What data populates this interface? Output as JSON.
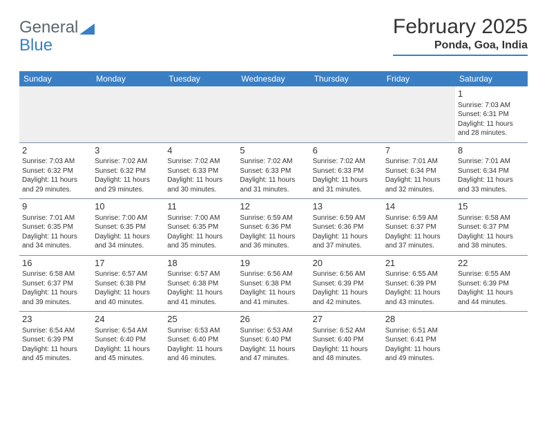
{
  "logo": {
    "word1": "General",
    "word2": "Blue"
  },
  "header": {
    "month_title": "February 2025",
    "location": "Ponda, Goa, India"
  },
  "style": {
    "accent_color": "#3a7fc4",
    "text_color": "#333333",
    "header_text_color": "#ffffff",
    "row_border_color": "#7a8aa0",
    "blank_row_bg": "#efefef",
    "page_bg": "#ffffff",
    "month_title_fontsize": 30,
    "location_fontsize": 16,
    "dayheader_fontsize": 12,
    "body_fontsize": 10,
    "daynum_fontsize": 13
  },
  "calendar": {
    "day_headers": [
      "Sunday",
      "Monday",
      "Tuesday",
      "Wednesday",
      "Thursday",
      "Friday",
      "Saturday"
    ],
    "weeks": [
      [
        null,
        null,
        null,
        null,
        null,
        null,
        {
          "n": "1",
          "sr": "Sunrise: 7:03 AM",
          "ss": "Sunset: 6:31 PM",
          "d1": "Daylight: 11 hours",
          "d2": "and 28 minutes."
        }
      ],
      [
        {
          "n": "2",
          "sr": "Sunrise: 7:03 AM",
          "ss": "Sunset: 6:32 PM",
          "d1": "Daylight: 11 hours",
          "d2": "and 29 minutes."
        },
        {
          "n": "3",
          "sr": "Sunrise: 7:02 AM",
          "ss": "Sunset: 6:32 PM",
          "d1": "Daylight: 11 hours",
          "d2": "and 29 minutes."
        },
        {
          "n": "4",
          "sr": "Sunrise: 7:02 AM",
          "ss": "Sunset: 6:33 PM",
          "d1": "Daylight: 11 hours",
          "d2": "and 30 minutes."
        },
        {
          "n": "5",
          "sr": "Sunrise: 7:02 AM",
          "ss": "Sunset: 6:33 PM",
          "d1": "Daylight: 11 hours",
          "d2": "and 31 minutes."
        },
        {
          "n": "6",
          "sr": "Sunrise: 7:02 AM",
          "ss": "Sunset: 6:33 PM",
          "d1": "Daylight: 11 hours",
          "d2": "and 31 minutes."
        },
        {
          "n": "7",
          "sr": "Sunrise: 7:01 AM",
          "ss": "Sunset: 6:34 PM",
          "d1": "Daylight: 11 hours",
          "d2": "and 32 minutes."
        },
        {
          "n": "8",
          "sr": "Sunrise: 7:01 AM",
          "ss": "Sunset: 6:34 PM",
          "d1": "Daylight: 11 hours",
          "d2": "and 33 minutes."
        }
      ],
      [
        {
          "n": "9",
          "sr": "Sunrise: 7:01 AM",
          "ss": "Sunset: 6:35 PM",
          "d1": "Daylight: 11 hours",
          "d2": "and 34 minutes."
        },
        {
          "n": "10",
          "sr": "Sunrise: 7:00 AM",
          "ss": "Sunset: 6:35 PM",
          "d1": "Daylight: 11 hours",
          "d2": "and 34 minutes."
        },
        {
          "n": "11",
          "sr": "Sunrise: 7:00 AM",
          "ss": "Sunset: 6:35 PM",
          "d1": "Daylight: 11 hours",
          "d2": "and 35 minutes."
        },
        {
          "n": "12",
          "sr": "Sunrise: 6:59 AM",
          "ss": "Sunset: 6:36 PM",
          "d1": "Daylight: 11 hours",
          "d2": "and 36 minutes."
        },
        {
          "n": "13",
          "sr": "Sunrise: 6:59 AM",
          "ss": "Sunset: 6:36 PM",
          "d1": "Daylight: 11 hours",
          "d2": "and 37 minutes."
        },
        {
          "n": "14",
          "sr": "Sunrise: 6:59 AM",
          "ss": "Sunset: 6:37 PM",
          "d1": "Daylight: 11 hours",
          "d2": "and 37 minutes."
        },
        {
          "n": "15",
          "sr": "Sunrise: 6:58 AM",
          "ss": "Sunset: 6:37 PM",
          "d1": "Daylight: 11 hours",
          "d2": "and 38 minutes."
        }
      ],
      [
        {
          "n": "16",
          "sr": "Sunrise: 6:58 AM",
          "ss": "Sunset: 6:37 PM",
          "d1": "Daylight: 11 hours",
          "d2": "and 39 minutes."
        },
        {
          "n": "17",
          "sr": "Sunrise: 6:57 AM",
          "ss": "Sunset: 6:38 PM",
          "d1": "Daylight: 11 hours",
          "d2": "and 40 minutes."
        },
        {
          "n": "18",
          "sr": "Sunrise: 6:57 AM",
          "ss": "Sunset: 6:38 PM",
          "d1": "Daylight: 11 hours",
          "d2": "and 41 minutes."
        },
        {
          "n": "19",
          "sr": "Sunrise: 6:56 AM",
          "ss": "Sunset: 6:38 PM",
          "d1": "Daylight: 11 hours",
          "d2": "and 41 minutes."
        },
        {
          "n": "20",
          "sr": "Sunrise: 6:56 AM",
          "ss": "Sunset: 6:39 PM",
          "d1": "Daylight: 11 hours",
          "d2": "and 42 minutes."
        },
        {
          "n": "21",
          "sr": "Sunrise: 6:55 AM",
          "ss": "Sunset: 6:39 PM",
          "d1": "Daylight: 11 hours",
          "d2": "and 43 minutes."
        },
        {
          "n": "22",
          "sr": "Sunrise: 6:55 AM",
          "ss": "Sunset: 6:39 PM",
          "d1": "Daylight: 11 hours",
          "d2": "and 44 minutes."
        }
      ],
      [
        {
          "n": "23",
          "sr": "Sunrise: 6:54 AM",
          "ss": "Sunset: 6:39 PM",
          "d1": "Daylight: 11 hours",
          "d2": "and 45 minutes."
        },
        {
          "n": "24",
          "sr": "Sunrise: 6:54 AM",
          "ss": "Sunset: 6:40 PM",
          "d1": "Daylight: 11 hours",
          "d2": "and 45 minutes."
        },
        {
          "n": "25",
          "sr": "Sunrise: 6:53 AM",
          "ss": "Sunset: 6:40 PM",
          "d1": "Daylight: 11 hours",
          "d2": "and 46 minutes."
        },
        {
          "n": "26",
          "sr": "Sunrise: 6:53 AM",
          "ss": "Sunset: 6:40 PM",
          "d1": "Daylight: 11 hours",
          "d2": "and 47 minutes."
        },
        {
          "n": "27",
          "sr": "Sunrise: 6:52 AM",
          "ss": "Sunset: 6:40 PM",
          "d1": "Daylight: 11 hours",
          "d2": "and 48 minutes."
        },
        {
          "n": "28",
          "sr": "Sunrise: 6:51 AM",
          "ss": "Sunset: 6:41 PM",
          "d1": "Daylight: 11 hours",
          "d2": "and 49 minutes."
        },
        null
      ]
    ]
  }
}
